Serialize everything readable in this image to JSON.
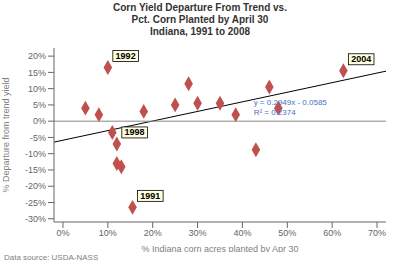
{
  "chart_data": {
    "type": "scatter",
    "title": "Corn Yield Departure From Trend vs.\nPct. Corn Planted by April 30\nIndiana, 1991 to 2008",
    "xlabel": "% Indiana corn acres planted by Apr 30",
    "ylabel": "% Departure from trend yield",
    "grid": false,
    "xlim": [
      -0.02,
      0.72
    ],
    "ylim": [
      -0.31,
      0.225
    ],
    "xticks": [
      {
        "value": 0.0,
        "label": "0%"
      },
      {
        "value": 0.1,
        "label": "10%"
      },
      {
        "value": 0.2,
        "label": "20%"
      },
      {
        "value": 0.3,
        "label": "30%"
      },
      {
        "value": 0.4,
        "label": "40%"
      },
      {
        "value": 0.5,
        "label": "50%"
      },
      {
        "value": 0.6,
        "label": "60%"
      },
      {
        "value": 0.7,
        "label": "70%"
      }
    ],
    "yticks": [
      {
        "value": -0.3,
        "label": "-30%"
      },
      {
        "value": -0.25,
        "label": "-25%"
      },
      {
        "value": -0.2,
        "label": "-20%"
      },
      {
        "value": -0.15,
        "label": "-15%"
      },
      {
        "value": -0.1,
        "label": "-10%"
      },
      {
        "value": -0.05,
        "label": "-5%"
      },
      {
        "value": 0.0,
        "label": "0%"
      },
      {
        "value": 0.05,
        "label": "5%"
      },
      {
        "value": 0.1,
        "label": "10%"
      },
      {
        "value": 0.15,
        "label": "15%"
      },
      {
        "value": 0.2,
        "label": "20%"
      }
    ],
    "series": [
      {
        "type": "scatter",
        "marker": "diamond",
        "color": "#c0504d",
        "x": [
          0.05,
          0.08,
          0.1,
          0.11,
          0.12,
          0.12,
          0.13,
          0.155,
          0.18,
          0.25,
          0.28,
          0.3,
          0.35,
          0.385,
          0.43,
          0.46,
          0.48,
          0.625
        ],
        "values": [
          0.04,
          0.02,
          0.165,
          -0.035,
          -0.07,
          -0.13,
          -0.14,
          -0.265,
          0.03,
          0.05,
          0.115,
          0.055,
          0.055,
          0.02,
          -0.088,
          0.105,
          0.04,
          0.155
        ]
      },
      {
        "type": "line",
        "color": "#000000",
        "x": [
          -0.02,
          0.72
        ],
        "values": [
          -0.064398,
          0.153828
        ]
      },
      {
        "type": "line",
        "color": "#888888",
        "x": [
          -0.02,
          0.72
        ],
        "values": [
          0,
          0
        ]
      }
    ],
    "annotations": [
      {
        "text": "1992",
        "x": 0.1,
        "y": 0.165
      },
      {
        "text": "1998",
        "x": 0.12,
        "y": -0.07
      },
      {
        "text": "1991",
        "x": 0.155,
        "y": -0.265
      },
      {
        "text": "2004",
        "x": 0.625,
        "y": 0.155
      },
      {
        "text": "y = 0.2949x - 0.0585\nR² = 0.2374",
        "x": 0.425,
        "y": 0.075,
        "color": "#4472c4"
      },
      {
        "text": "Data source: USDA-NASS",
        "color": "gray"
      }
    ]
  }
}
